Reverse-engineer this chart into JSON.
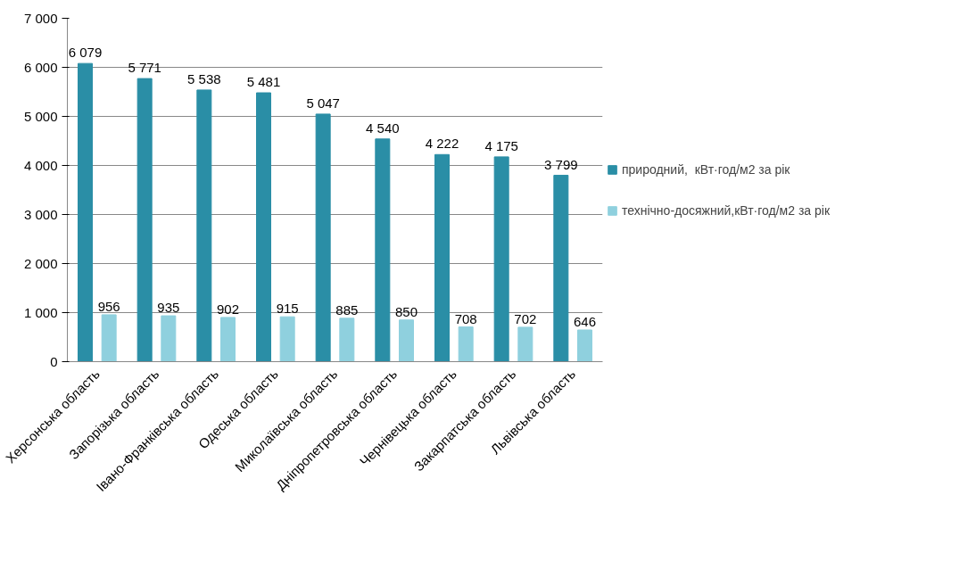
{
  "chart_data": {
    "type": "bar",
    "categories": [
      "Херсонська область",
      "Запорізька область",
      "Івано-Франківська область",
      "Одеська область",
      "Миколаївська область",
      "Дніпропетровська область",
      "Чернівецька область",
      "Закарпатська область",
      "Львівська область"
    ],
    "series": [
      {
        "name": "природний,  кВт·год/м2 за рік",
        "color": "#2a8ea6",
        "values": [
          6079,
          5771,
          5538,
          5481,
          5047,
          4540,
          4222,
          4175,
          3799
        ],
        "value_labels": [
          "6 079",
          "5 771",
          "5 538",
          "5 481",
          "5 047",
          "4 540",
          "4 222",
          "4 175",
          "3 799"
        ]
      },
      {
        "name": "технічно-досяжний,кВт·год/м2 за рік",
        "color": "#8fd0de",
        "values": [
          956,
          935,
          902,
          915,
          885,
          850,
          708,
          702,
          646
        ],
        "value_labels": [
          "956",
          "935",
          "902",
          "915",
          "885",
          "850",
          "708",
          "702",
          "646"
        ]
      }
    ],
    "ylim": [
      0,
      7000
    ],
    "yticks": [
      0,
      {
        "value": 1000,
        "label": "1 000"
      },
      {
        "value": 2000,
        "label": "2 000"
      },
      {
        "value": 3000,
        "label": "3 000"
      },
      {
        "value": 4000,
        "label": "4 000"
      },
      {
        "value": 5000,
        "label": "5 000"
      },
      {
        "value": 6000,
        "label": "6 000"
      },
      {
        "value": 7000,
        "label": "7 000"
      }
    ],
    "grid": "y",
    "legend": "right"
  }
}
